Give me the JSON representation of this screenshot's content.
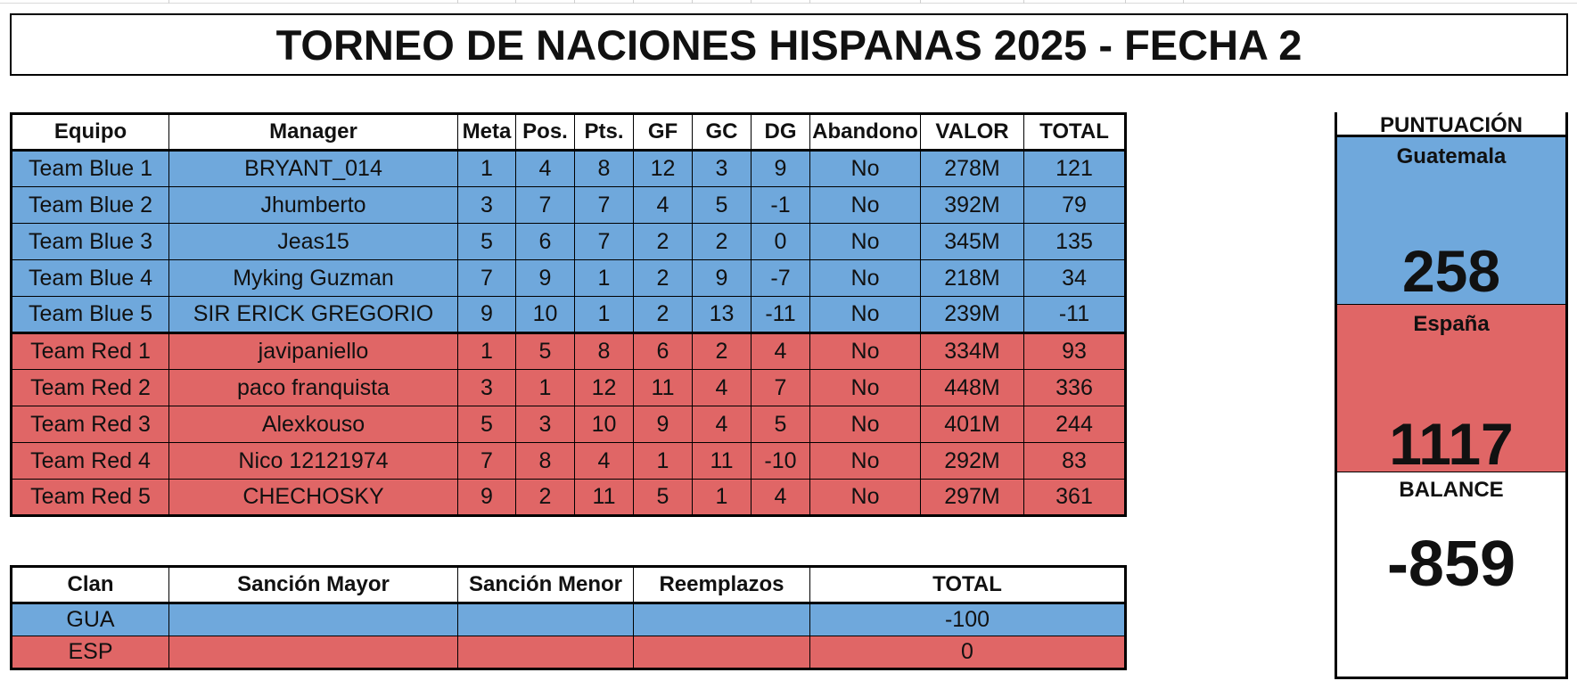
{
  "title": "TORNEO DE NACIONES HISPANAS 2025 - FECHA 2",
  "main_table": {
    "headers": [
      "Equipo",
      "Manager",
      "Meta",
      "Pos.",
      "Pts.",
      "GF",
      "GC",
      "DG",
      "Abandono",
      "VALOR",
      "TOTAL"
    ],
    "rows": [
      {
        "team": "blue",
        "cells": [
          "Team Blue 1",
          "BRYANT_014",
          "1",
          "4",
          "8",
          "12",
          "3",
          "9",
          "No",
          "278M",
          "121"
        ]
      },
      {
        "team": "blue",
        "cells": [
          "Team Blue 2",
          "Jhumberto",
          "3",
          "7",
          "7",
          "4",
          "5",
          "-1",
          "No",
          "392M",
          "79"
        ]
      },
      {
        "team": "blue",
        "cells": [
          "Team Blue 3",
          "Jeas15",
          "5",
          "6",
          "7",
          "2",
          "2",
          "0",
          "No",
          "345M",
          "135"
        ]
      },
      {
        "team": "blue",
        "cells": [
          "Team Blue 4",
          "Myking Guzman",
          "7",
          "9",
          "1",
          "2",
          "9",
          "-7",
          "No",
          "218M",
          "34"
        ]
      },
      {
        "team": "blue",
        "cells": [
          "Team Blue 5",
          "SIR ERICK GREGORIO",
          "9",
          "10",
          "1",
          "2",
          "13",
          "-11",
          "No",
          "239M",
          "-11"
        ]
      },
      {
        "team": "red",
        "cells": [
          "Team Red 1",
          "javipaniello",
          "1",
          "5",
          "8",
          "6",
          "2",
          "4",
          "No",
          "334M",
          "93"
        ]
      },
      {
        "team": "red",
        "cells": [
          "Team Red 2",
          "paco franquista",
          "3",
          "1",
          "12",
          "11",
          "4",
          "7",
          "No",
          "448M",
          "336"
        ]
      },
      {
        "team": "red",
        "cells": [
          "Team Red 3",
          "Alexkouso",
          "5",
          "3",
          "10",
          "9",
          "4",
          "5",
          "No",
          "401M",
          "244"
        ]
      },
      {
        "team": "red",
        "cells": [
          "Team Red 4",
          "Nico 12121974",
          "7",
          "8",
          "4",
          "1",
          "11",
          "-10",
          "No",
          "292M",
          "83"
        ]
      },
      {
        "team": "red",
        "cells": [
          "Team Red 5",
          "CHECHOSKY",
          "9",
          "2",
          "11",
          "5",
          "1",
          "4",
          "No",
          "297M",
          "361"
        ]
      }
    ]
  },
  "penalty_table": {
    "headers": [
      "Clan",
      "Sanción Mayor",
      "Sanción Menor",
      "Reemplazos",
      "TOTAL"
    ],
    "rows": [
      {
        "team": "blue",
        "cells": [
          "GUA",
          "",
          "",
          "",
          "-100"
        ]
      },
      {
        "team": "red",
        "cells": [
          "ESP",
          "",
          "",
          "",
          "0"
        ]
      }
    ]
  },
  "score": {
    "header": "PUNTUACIÓN",
    "team1_name": "Guatemala",
    "team1_score": "258",
    "team2_name": "España",
    "team2_score": "1117",
    "balance_label": "BALANCE",
    "balance_value": "-859"
  },
  "colors": {
    "blue": "#6fa8dc",
    "red": "#e06666"
  }
}
